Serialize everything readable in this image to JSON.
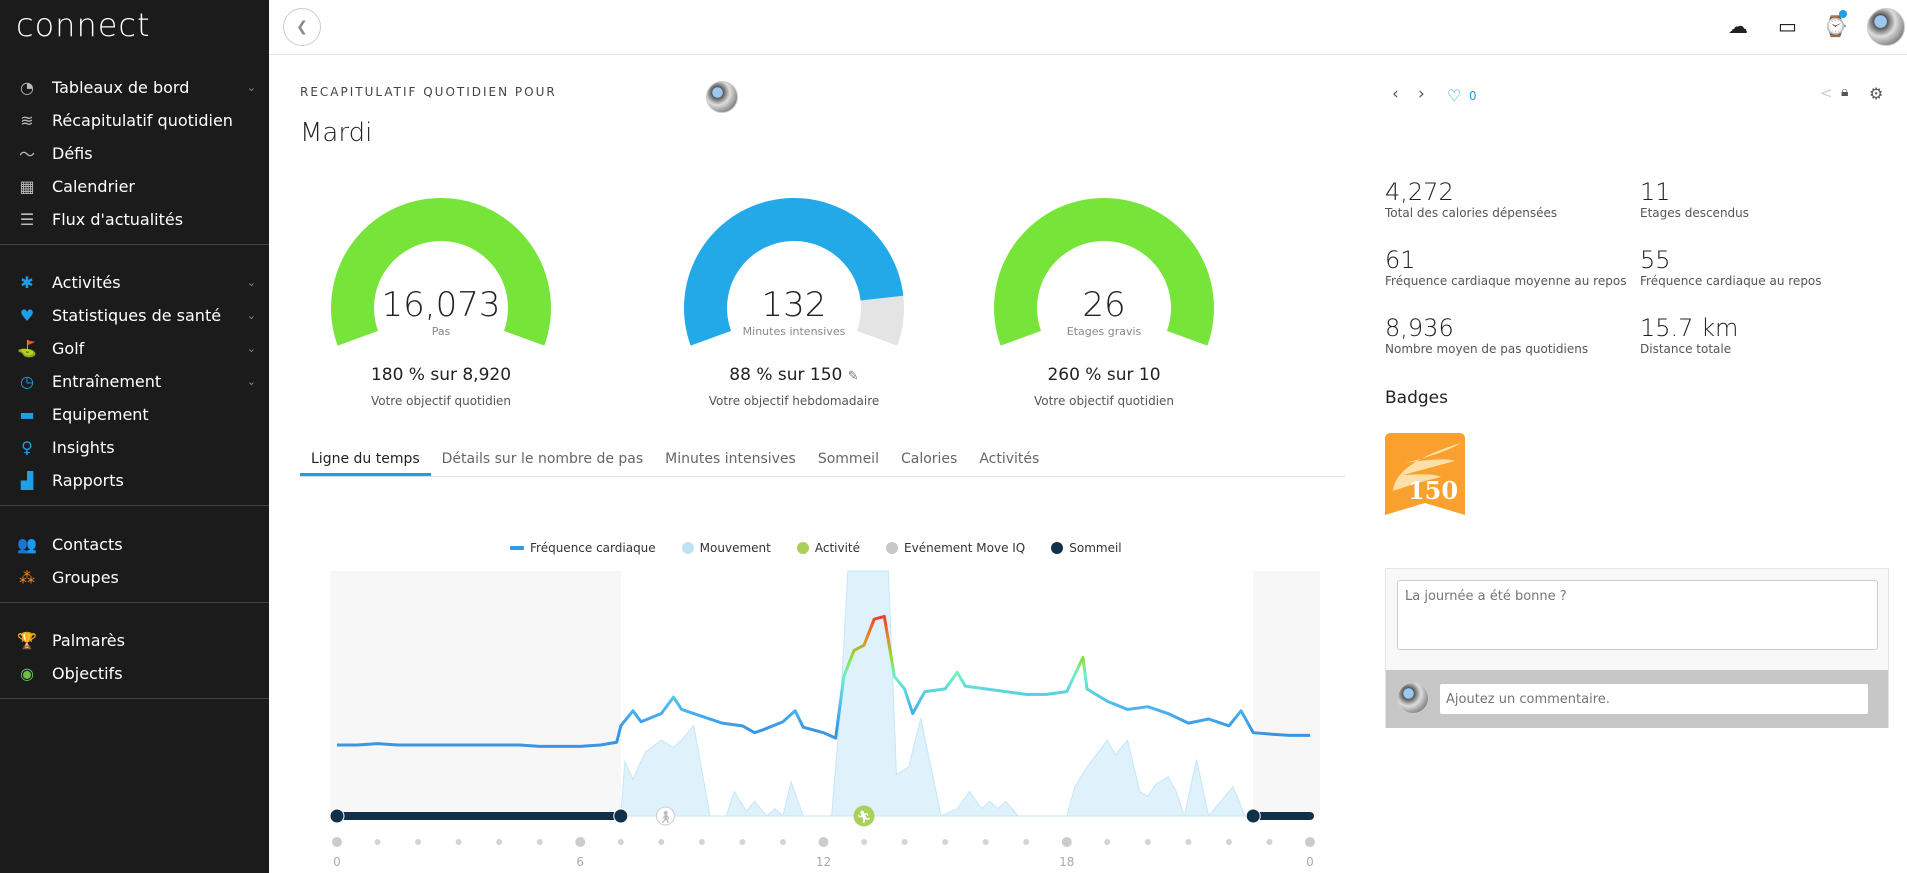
{
  "app": {
    "logo": "connect"
  },
  "sidebar": {
    "groups": [
      [
        {
          "label": "Tableaux de bord",
          "icon": "dashboard-gauge-icon",
          "chevron": true,
          "color": "#bbbbbb",
          "glyph": "◔"
        },
        {
          "label": "Récapitulatif quotidien",
          "icon": "layers-icon",
          "chevron": false,
          "color": "#bbbbbb",
          "glyph": "≋"
        },
        {
          "label": "Défis",
          "icon": "challenge-icon",
          "chevron": false,
          "color": "#bbbbbb",
          "glyph": "〜"
        },
        {
          "label": "Calendrier",
          "icon": "calendar-icon",
          "chevron": false,
          "color": "#bbbbbb",
          "glyph": "▦"
        },
        {
          "label": "Flux d'actualités",
          "icon": "newsfeed-icon",
          "chevron": false,
          "color": "#bbbbbb",
          "glyph": "☰"
        }
      ],
      [
        {
          "label": "Activités",
          "icon": "activities-icon",
          "chevron": true,
          "color": "#1e9ee4",
          "glyph": "✱"
        },
        {
          "label": "Statistiques de santé",
          "icon": "heart-icon",
          "chevron": true,
          "color": "#1e9ee4",
          "glyph": "♥"
        },
        {
          "label": "Golf",
          "icon": "golf-icon",
          "chevron": true,
          "color": "#1e9ee4",
          "glyph": "⛳"
        },
        {
          "label": "Entraînement",
          "icon": "stopwatch-icon",
          "chevron": true,
          "color": "#1e9ee4",
          "glyph": "◷"
        },
        {
          "label": "Equipement",
          "icon": "shoe-icon",
          "chevron": false,
          "color": "#1e9ee4",
          "glyph": "▬"
        },
        {
          "label": "Insights",
          "icon": "lightbulb-icon",
          "chevron": false,
          "color": "#1e9ee4",
          "glyph": "♀"
        },
        {
          "label": "Rapports",
          "icon": "bar-chart-icon",
          "chevron": false,
          "color": "#1e9ee4",
          "glyph": "▟"
        }
      ],
      [
        {
          "label": "Contacts",
          "icon": "contacts-icon",
          "chevron": false,
          "color": "#f08a24",
          "glyph": "👥"
        },
        {
          "label": "Groupes",
          "icon": "groups-icon",
          "chevron": false,
          "color": "#f08a24",
          "glyph": "⁂"
        }
      ],
      [
        {
          "label": "Palmarès",
          "icon": "trophy-icon",
          "chevron": false,
          "color": "#6cc04a",
          "glyph": "🏆"
        },
        {
          "label": "Objectifs",
          "icon": "target-icon",
          "chevron": false,
          "color": "#6cc04a",
          "glyph": "◉"
        }
      ]
    ]
  },
  "topbar": {
    "icons": [
      "upload-cloud-icon",
      "inbox-icon",
      "watch-icon",
      "user-avatar"
    ],
    "notification_color": "#1e9ee4"
  },
  "header": {
    "label": "RECAPITULATIF QUOTIDIEN POUR",
    "day": "Mardi",
    "likes": "0"
  },
  "gauges": [
    {
      "value": "16,073",
      "label": "Pas",
      "pct_text": "180 % sur 8,920",
      "sub": "Votre objectif quotidien",
      "percent": 180,
      "color": "#77e43a",
      "editable": false
    },
    {
      "value": "132",
      "label": "Minutes intensives",
      "pct_text": "88 % sur 150",
      "sub": "Votre objectif hebdomadaire",
      "percent": 88,
      "color": "#23a8e8",
      "editable": true
    },
    {
      "value": "26",
      "label": "Etages gravis",
      "pct_text": "260 % sur 10",
      "sub": "Votre objectif quotidien",
      "percent": 260,
      "color": "#77e43a",
      "editable": false
    }
  ],
  "tabs": [
    "Ligne du temps",
    "Détails sur le nombre de pas",
    "Minutes intensives",
    "Sommeil",
    "Calories",
    "Activités"
  ],
  "active_tab": 0,
  "stats": [
    {
      "value": "4,272",
      "label": "Total des calories dépensées"
    },
    {
      "value": "11",
      "label": "Etages descendus"
    },
    {
      "value": "61",
      "label": "Fréquence cardiaque moyenne au repos"
    },
    {
      "value": "55",
      "label": "Fréquence cardiaque au repos"
    },
    {
      "value": "8,936",
      "label": "Nombre moyen de pas quotidiens"
    },
    {
      "value": "15.7 km",
      "label": "Distance totale"
    }
  ],
  "badges": {
    "title": "Badges",
    "items": [
      {
        "text": "150",
        "color": "#f9a02f"
      }
    ]
  },
  "comments": {
    "note_placeholder": "La journée a été bonne ?",
    "comment_placeholder": "Ajoutez un commentaire."
  },
  "chart_data": {
    "type": "line",
    "legend": [
      {
        "name": "Fréquence cardiaque",
        "color": "#2e9be6",
        "shape": "line"
      },
      {
        "name": "Mouvement",
        "color": "#bfe3f5",
        "shape": "dot"
      },
      {
        "name": "Activité",
        "color": "#a8d05a",
        "shape": "dot"
      },
      {
        "name": "Evénement Move IQ",
        "color": "#c8c8c8",
        "shape": "dot"
      },
      {
        "name": "Sommeil",
        "color": "#12304a",
        "shape": "dot"
      }
    ],
    "legend_position": "top",
    "x_ticks": [
      "0",
      "6",
      "12",
      "18",
      "0"
    ],
    "x_range_hours": [
      0,
      24
    ],
    "heart_rate": [
      [
        0,
        55
      ],
      [
        0.5,
        55
      ],
      [
        1,
        56
      ],
      [
        1.5,
        55
      ],
      [
        2,
        55
      ],
      [
        2.5,
        55
      ],
      [
        3,
        55
      ],
      [
        3.5,
        55
      ],
      [
        4,
        55
      ],
      [
        4.5,
        55
      ],
      [
        5,
        54
      ],
      [
        5.5,
        54
      ],
      [
        6,
        54
      ],
      [
        6.5,
        55
      ],
      [
        6.9,
        57
      ],
      [
        7.0,
        69
      ],
      [
        7.3,
        80
      ],
      [
        7.5,
        72
      ],
      [
        8,
        78
      ],
      [
        8.3,
        90
      ],
      [
        8.5,
        81
      ],
      [
        9,
        76
      ],
      [
        9.5,
        71
      ],
      [
        10,
        69
      ],
      [
        10.3,
        64
      ],
      [
        10.5,
        66
      ],
      [
        11,
        72
      ],
      [
        11.3,
        80
      ],
      [
        11.5,
        68
      ],
      [
        12,
        64
      ],
      [
        12.3,
        60
      ],
      [
        12.5,
        105
      ],
      [
        12.75,
        124
      ],
      [
        13,
        128
      ],
      [
        13.25,
        147
      ],
      [
        13.5,
        149
      ],
      [
        13.75,
        105
      ],
      [
        14,
        96
      ],
      [
        14.2,
        78
      ],
      [
        14.5,
        94
      ],
      [
        15,
        96
      ],
      [
        15.3,
        108
      ],
      [
        15.5,
        98
      ],
      [
        16,
        96
      ],
      [
        16.5,
        94
      ],
      [
        17,
        92
      ],
      [
        17.5,
        92
      ],
      [
        18,
        94
      ],
      [
        18.4,
        119
      ],
      [
        18.5,
        96
      ],
      [
        19,
        87
      ],
      [
        19.5,
        81
      ],
      [
        20,
        83
      ],
      [
        20.5,
        78
      ],
      [
        21,
        71
      ],
      [
        21.5,
        74
      ],
      [
        22,
        69
      ],
      [
        22.3,
        80
      ],
      [
        22.6,
        64
      ],
      [
        23,
        63
      ],
      [
        23.5,
        62
      ],
      [
        24,
        62
      ]
    ],
    "movement": [
      [
        0,
        0
      ],
      [
        7.0,
        0
      ],
      [
        7.1,
        22
      ],
      [
        7.3,
        15
      ],
      [
        7.6,
        26
      ],
      [
        8,
        31
      ],
      [
        8.3,
        28
      ],
      [
        8.5,
        31
      ],
      [
        8.8,
        37
      ],
      [
        9.2,
        0
      ],
      [
        9.6,
        0
      ],
      [
        9.8,
        10
      ],
      [
        10.1,
        2
      ],
      [
        10.3,
        6
      ],
      [
        10.6,
        0
      ],
      [
        10.8,
        3
      ],
      [
        11,
        0
      ],
      [
        11.2,
        14
      ],
      [
        11.5,
        0
      ],
      [
        12.2,
        0
      ],
      [
        12.4,
        40
      ],
      [
        12.6,
        100
      ],
      [
        13.6,
        100
      ],
      [
        13.8,
        17
      ],
      [
        14.1,
        20
      ],
      [
        14.4,
        40
      ],
      [
        14.9,
        0
      ],
      [
        15.3,
        3
      ],
      [
        15.6,
        10
      ],
      [
        15.9,
        3
      ],
      [
        16.1,
        6
      ],
      [
        16.3,
        3
      ],
      [
        16.5,
        6
      ],
      [
        16.8,
        0
      ],
      [
        18,
        0
      ],
      [
        18.2,
        12
      ],
      [
        18.5,
        20
      ],
      [
        19,
        31
      ],
      [
        19.2,
        25
      ],
      [
        19.5,
        31
      ],
      [
        19.8,
        10
      ],
      [
        20,
        8
      ],
      [
        20.2,
        13
      ],
      [
        20.5,
        16
      ],
      [
        20.7,
        10
      ],
      [
        20.9,
        0
      ],
      [
        21.2,
        23
      ],
      [
        21.5,
        0
      ],
      [
        22.1,
        12
      ],
      [
        22.4,
        0
      ],
      [
        24,
        0
      ]
    ],
    "sleep": [
      [
        0,
        7.0
      ],
      [
        22.6,
        24
      ]
    ],
    "events": [
      {
        "type": "Evénement Move IQ",
        "hour": 8.1,
        "icon": "walking-icon"
      },
      {
        "type": "Activité",
        "hour": 13.0,
        "icon": "running-icon"
      }
    ]
  }
}
